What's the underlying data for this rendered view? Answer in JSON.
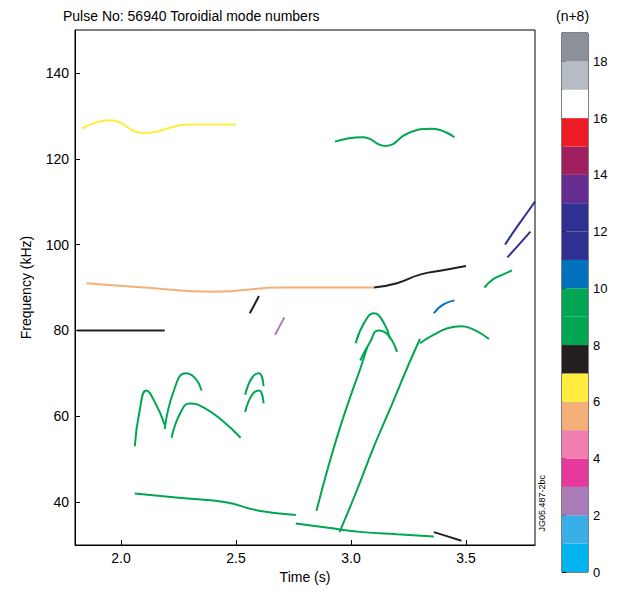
{
  "chart_data": {
    "type": "line",
    "title": "Pulse No: 56940 Toroidial mode numbers",
    "x_label": "Time (s)",
    "y_label": "Frequency (kHz)",
    "xlim": [
      1.8,
      3.8
    ],
    "xticks": [
      {
        "value": 2,
        "label": "2.0"
      },
      {
        "value": 2.5,
        "label": "2.5"
      },
      {
        "value": 3,
        "label": "3.0"
      },
      {
        "value": 3.5,
        "label": "3.5"
      }
    ],
    "ylim": [
      30,
      150
    ],
    "yticks": [
      40,
      60,
      80,
      100,
      120,
      140
    ],
    "grid": false,
    "annotations": [
      "JG05.487-2bc"
    ],
    "colorbar": {
      "title": "(n+8)",
      "range": [
        0,
        19
      ],
      "ticks": [
        0,
        2,
        4,
        6,
        8,
        10,
        12,
        14,
        16,
        18
      ],
      "colors": [
        "#00b4f0",
        "#3aaee6",
        "#a97cb8",
        "#e6399b",
        "#f07fb0",
        "#f5b07a",
        "#ffec3d",
        "#231f20",
        "#00a651",
        "#00a651",
        "#0072bc",
        "#2e3192",
        "#2e3192",
        "#662d91",
        "#a0205f",
        "#ed1c24",
        "#ffffff",
        "#b5bcc4",
        "#8a9199"
      ]
    },
    "series": [
      {
        "mode": 7,
        "x": [
          1.81,
          1.9,
          2.0,
          2.1,
          2.19
        ],
        "y": [
          80,
          80,
          80,
          80,
          80
        ]
      },
      {
        "mode": 8,
        "x": [
          2.06,
          2.08,
          2.11,
          2.15,
          2.19
        ],
        "y": [
          53,
          61,
          66,
          63,
          58
        ]
      },
      {
        "mode": 8,
        "x": [
          2.19,
          2.23,
          2.28,
          2.32,
          2.35
        ],
        "y": [
          57,
          66,
          70,
          69,
          66
        ]
      },
      {
        "mode": 9,
        "x": [
          2.22,
          2.26,
          2.3,
          2.36,
          2.44,
          2.52
        ],
        "y": [
          55,
          61,
          63,
          62,
          59,
          55
        ]
      },
      {
        "mode": 8,
        "x": [
          2.54,
          2.57,
          2.6,
          2.62
        ],
        "y": [
          65,
          69,
          70,
          67
        ]
      },
      {
        "mode": 8,
        "x": [
          2.54,
          2.57,
          2.6,
          2.62
        ],
        "y": [
          61,
          65,
          66,
          63
        ]
      },
      {
        "mode": 2,
        "x": [
          2.67,
          2.69,
          2.71
        ],
        "y": [
          79,
          81,
          83
        ]
      },
      {
        "mode": 7,
        "x": [
          2.56,
          2.58,
          2.6
        ],
        "y": [
          84,
          86,
          88
        ]
      },
      {
        "mode": 8,
        "x": [
          2.85,
          2.9,
          2.95,
          3.0,
          3.04,
          3.07
        ],
        "y": [
          38,
          48,
          57,
          65,
          71,
          76
        ]
      },
      {
        "mode": 8,
        "x": [
          3.02,
          3.06,
          3.1,
          3.14,
          3.17
        ],
        "y": [
          77,
          82,
          84,
          82,
          78
        ]
      },
      {
        "mode": 8,
        "x": [
          3.04,
          3.08,
          3.12,
          3.16,
          3.2
        ],
        "y": [
          73,
          77,
          80,
          79,
          75
        ]
      },
      {
        "mode": 8,
        "x": [
          2.95,
          3.02,
          3.1,
          3.18,
          3.25,
          3.3
        ],
        "y": [
          33,
          42,
          53,
          63,
          72,
          78
        ]
      },
      {
        "mode": 8,
        "x": [
          3.3,
          3.36,
          3.42,
          3.48,
          3.54,
          3.6
        ],
        "y": [
          77,
          79,
          80.5,
          81,
          80,
          78
        ]
      },
      {
        "mode": 10,
        "x": [
          3.36,
          3.4,
          3.45
        ],
        "y": [
          84,
          86,
          87
        ]
      },
      {
        "mode": 8,
        "x": [
          3.58,
          3.62,
          3.66,
          3.7
        ],
        "y": [
          90,
          92,
          93,
          94
        ]
      },
      {
        "mode": 12,
        "x": [
          3.67,
          3.72,
          3.76,
          3.8
        ],
        "y": [
          100,
          104,
          107,
          110
        ]
      },
      {
        "mode": 11,
        "x": [
          3.68,
          3.73,
          3.78
        ],
        "y": [
          97,
          100,
          103
        ]
      },
      {
        "mode": 5,
        "x": [
          1.85,
          2.1,
          2.4,
          2.7,
          3.0,
          3.1
        ],
        "y": [
          91,
          90,
          89,
          90,
          90,
          90
        ]
      },
      {
        "mode": 7,
        "x": [
          3.1,
          3.2,
          3.3,
          3.4,
          3.5
        ],
        "y": [
          90,
          91,
          93,
          94,
          95
        ]
      },
      {
        "mode": 6,
        "x": [
          1.83,
          1.95,
          2.1,
          2.3,
          2.5
        ],
        "y": [
          127,
          129,
          126,
          128,
          128
        ]
      },
      {
        "mode": 8,
        "x": [
          2.93,
          3.05,
          3.15,
          3.25,
          3.35,
          3.45
        ],
        "y": [
          124,
          125,
          123,
          126,
          127,
          125
        ]
      },
      {
        "mode": 8,
        "x": [
          2.06,
          2.25,
          2.45,
          2.6,
          2.76
        ],
        "y": [
          42,
          41,
          40,
          38,
          37
        ]
      },
      {
        "mode": 8,
        "x": [
          2.76,
          2.9,
          3.05,
          3.2,
          3.36
        ],
        "y": [
          35,
          34,
          33,
          32.5,
          32
        ]
      },
      {
        "mode": 7,
        "x": [
          3.36,
          3.42,
          3.48
        ],
        "y": [
          33,
          32,
          31
        ]
      }
    ]
  }
}
